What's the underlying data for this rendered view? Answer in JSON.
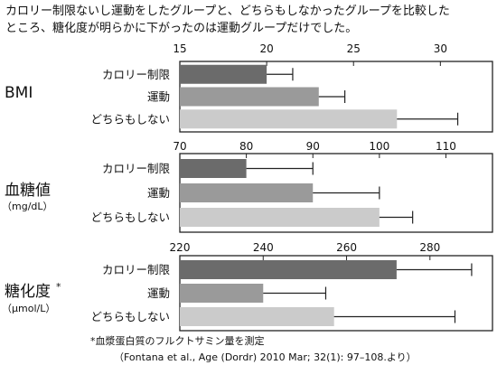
{
  "intro": {
    "line1": "カロリー制限ないし運動をしたグループと、どちらもしなかったグループを比較した",
    "line2": "ところ、糖化度が明らかに下がったのは運動グループだけでした。"
  },
  "colors": {
    "bar_calorie": "#6b6b6b",
    "bar_exercise": "#9a9a9a",
    "bar_neither": "#cbcbcb"
  },
  "chart_data": [
    {
      "type": "bar",
      "orientation": "horizontal",
      "title": "BMI",
      "subtitle": "",
      "categories": [
        "カロリー制限",
        "運動",
        "どちらもしない"
      ],
      "values": [
        20.0,
        23.0,
        27.5
      ],
      "error_upper": [
        21.5,
        24.5,
        31.0
      ],
      "xlim": [
        15,
        33
      ],
      "ticks": [
        15,
        20,
        25,
        30
      ],
      "tick_labels": [
        "15",
        "20",
        "25",
        "30"
      ]
    },
    {
      "type": "bar",
      "orientation": "horizontal",
      "title": "血糖値",
      "subtitle": "（mg/dL）",
      "categories": [
        "カロリー制限",
        "運動",
        "どちらもしない"
      ],
      "values": [
        80,
        90,
        100
      ],
      "error_upper": [
        90,
        100,
        105
      ],
      "xlim": [
        70,
        117
      ],
      "ticks": [
        70,
        80,
        90,
        100,
        110
      ],
      "tick_labels": [
        "70",
        "80",
        "90",
        "100",
        "110"
      ]
    },
    {
      "type": "bar",
      "orientation": "horizontal",
      "title": "糖化度",
      "title_mark": "*",
      "subtitle": "（μmol/L）",
      "categories": [
        "カロリー制限",
        "運動",
        "どちらもしない"
      ],
      "values": [
        272,
        240,
        257
      ],
      "error_upper": [
        290,
        255,
        286
      ],
      "xlim": [
        220,
        295
      ],
      "ticks": [
        220,
        240,
        260,
        280
      ],
      "tick_labels": [
        "220",
        "240",
        "260",
        "280"
      ]
    }
  ],
  "footnote": {
    "line1": "*血漿蛋白質のフルクトサミン量を測定",
    "line2": "（Fontana et al., Age (Dordr) 2010 Mar; 32(1): 97–108.より）"
  }
}
